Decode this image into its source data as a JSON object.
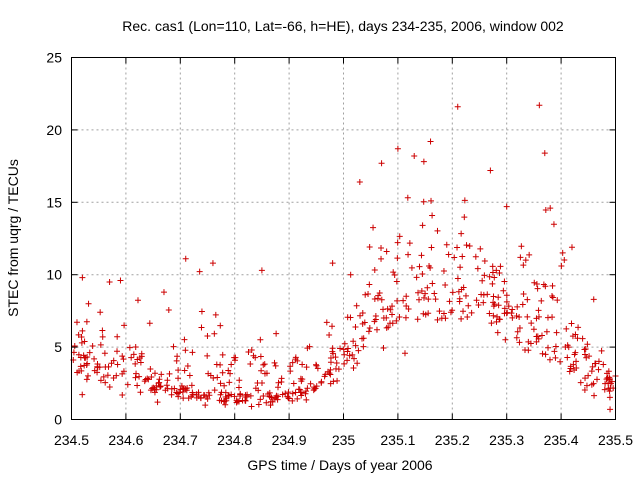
{
  "chart_data": {
    "type": "scatter",
    "title": "Rec. cas1 (Lon=110, Lat=-66, h=HE), days 234-235, 2006, window 002",
    "xlabel": "GPS time / Days of year 2006",
    "ylabel": "STEC from uqrg / TECUs",
    "xlim": [
      234.5,
      235.5
    ],
    "ylim": [
      0,
      25
    ],
    "x_ticks": [
      "234.5",
      "234.6",
      "234.7",
      "234.8",
      "234.9",
      "235",
      "235.1",
      "235.2",
      "235.3",
      "235.4",
      "235.5"
    ],
    "y_ticks": [
      "0",
      "5",
      "10",
      "15",
      "20",
      "25"
    ],
    "grid": true,
    "marker": "+",
    "color": "#cc0000",
    "bands": [
      [
        234.5,
        4.4,
        1.8,
        9.5
      ],
      [
        234.55,
        3.9,
        1.6,
        9.0
      ],
      [
        234.6,
        3.3,
        1.3,
        8.3
      ],
      [
        234.65,
        2.7,
        1.0,
        8.8
      ],
      [
        234.7,
        2.3,
        0.9,
        11.0
      ],
      [
        234.75,
        2.0,
        0.8,
        10.7
      ],
      [
        234.8,
        1.8,
        0.8,
        8.2
      ],
      [
        234.85,
        1.7,
        0.8,
        10.2
      ],
      [
        234.9,
        2.0,
        0.9,
        6.5
      ],
      [
        234.95,
        2.6,
        1.2,
        8.5
      ],
      [
        235.0,
        4.4,
        2.2,
        11.5
      ],
      [
        235.05,
        6.6,
        3.2,
        17.7
      ],
      [
        235.1,
        8.3,
        4.4,
        18.7
      ],
      [
        235.15,
        9.1,
        4.8,
        19.2
      ],
      [
        235.2,
        9.4,
        5.2,
        21.6
      ],
      [
        235.25,
        8.8,
        5.0,
        17.2
      ],
      [
        235.3,
        7.7,
        4.5,
        14.7
      ],
      [
        235.35,
        6.4,
        3.5,
        21.7
      ],
      [
        235.4,
        4.8,
        2.5,
        11.9
      ],
      [
        235.45,
        3.1,
        1.2,
        8.3
      ],
      [
        235.5,
        2.2,
        0.7,
        3.1
      ]
    ],
    "highlights": [
      [
        234.52,
        9.8
      ],
      [
        234.57,
        9.5
      ],
      [
        234.59,
        9.6
      ],
      [
        234.67,
        8.8
      ],
      [
        234.71,
        11.1
      ],
      [
        234.76,
        10.8
      ],
      [
        234.85,
        10.3
      ],
      [
        234.98,
        10.8
      ],
      [
        235.03,
        16.4
      ],
      [
        235.07,
        17.7
      ],
      [
        235.1,
        18.7
      ],
      [
        235.13,
        18.2
      ],
      [
        235.16,
        19.2
      ],
      [
        235.21,
        21.6
      ],
      [
        235.27,
        17.2
      ],
      [
        235.3,
        14.7
      ],
      [
        235.36,
        21.7
      ],
      [
        235.37,
        18.4
      ],
      [
        235.38,
        14.6
      ],
      [
        235.42,
        11.9
      ],
      [
        235.46,
        8.3
      ],
      [
        235.49,
        0.7
      ],
      [
        235.5,
        3.0
      ]
    ]
  }
}
